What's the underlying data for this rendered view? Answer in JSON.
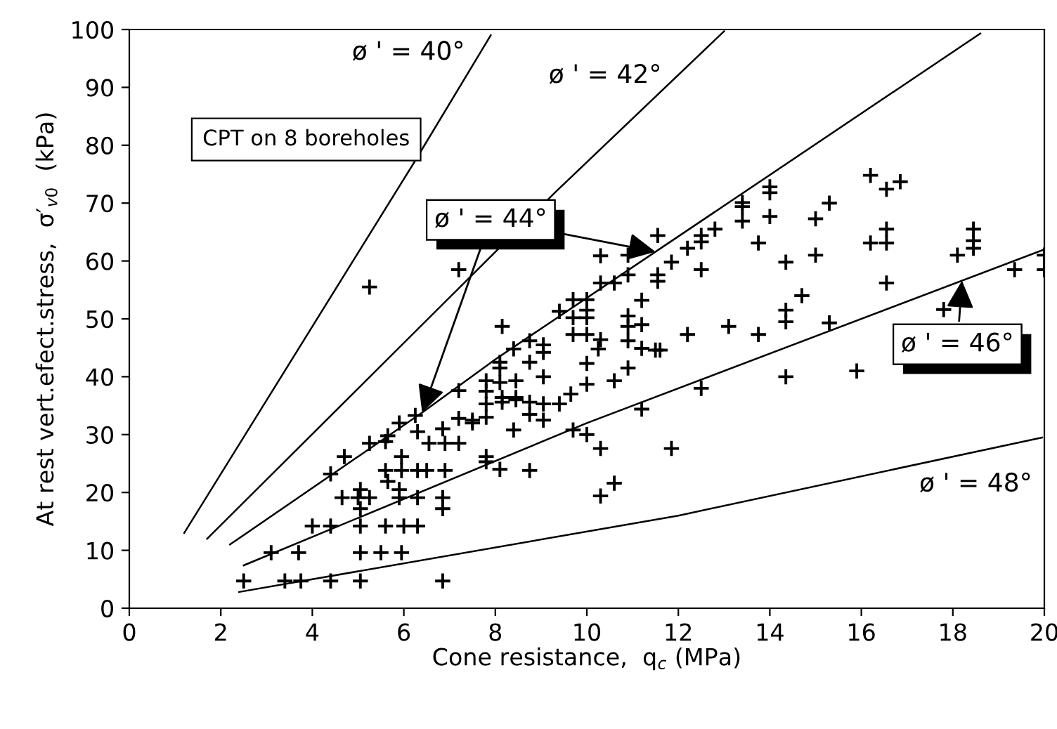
{
  "chart_data": {
    "type": "scatter",
    "xlabel": "Cone resistance,  q$_{c}$ (MPa)",
    "ylabel": "At rest vert.efect.stress,  σ′$_{v0}$  (kPa)",
    "xlim": [
      0,
      20
    ],
    "ylim": [
      0,
      100
    ],
    "xticks": [
      0,
      2,
      4,
      6,
      8,
      10,
      12,
      14,
      16,
      18,
      20
    ],
    "yticks": [
      0,
      10,
      20,
      30,
      40,
      50,
      60,
      70,
      80,
      90,
      100
    ],
    "grid": false,
    "legend": false,
    "marker": "cross",
    "series": [
      {
        "color": "#000000",
        "x": [
          2.5,
          3.4,
          3.75,
          4.4,
          5.05,
          6.85,
          3.1,
          3.7,
          5.05,
          5.5,
          5.95,
          4.0,
          4.4,
          5.05,
          5.6,
          6.0,
          6.3,
          5.05,
          6.85,
          4.65,
          5.0,
          5.25,
          5.9,
          6.3,
          6.85,
          5.05,
          5.9,
          5.65,
          5.6,
          5.95,
          6.3,
          6.5,
          6.9,
          8.1,
          8.75,
          4.4,
          4.7,
          5.95,
          7.8,
          7.8,
          11.85,
          10.3,
          5.25,
          5.6,
          6.55,
          6.9,
          7.2,
          5.65,
          8.4,
          9.7,
          10.0,
          5.9,
          6.3,
          6.85,
          7.2,
          7.5,
          7.8,
          7.5,
          8.75,
          9.05,
          6.25,
          11.2,
          9.4,
          9.05,
          8.75,
          8.45,
          7.8,
          8.15,
          8.15,
          8.45,
          7.8,
          7.2,
          9.65,
          10.0,
          12.5,
          10.6,
          8.1,
          8.45,
          7.8,
          9.05,
          14.35,
          15.9,
          8.1,
          10.9,
          8.1,
          8.75,
          10.0,
          8.4,
          9.05,
          10.25,
          11.5,
          11.6,
          11.2,
          8.75,
          9.05,
          10.3,
          10.9,
          9.7,
          10.0,
          12.2,
          13.75,
          8.15,
          10.9,
          13.1,
          15.3,
          14.35,
          11.2,
          9.7,
          10.0,
          10.9,
          9.4,
          10.0,
          14.35,
          14.7,
          9.7,
          10.0,
          11.2,
          17.8,
          10.3,
          10.6,
          11.55,
          16.55,
          10.9,
          11.55,
          7.2,
          12.5,
          19.35,
          20.0,
          11.85,
          14.35,
          5.25,
          10.3,
          10.9,
          15.0,
          18.1,
          20.0,
          12.2,
          12.5,
          18.45,
          13.75,
          16.2,
          16.55,
          18.45,
          11.55,
          12.5,
          12.8,
          16.55,
          18.45,
          13.4,
          14.0,
          15.0,
          13.4,
          13.4,
          15.3,
          14.0,
          14.0,
          16.55,
          16.85,
          16.2,
          10.6,
          10.3
        ],
        "values": [
          4.7,
          4.7,
          4.7,
          4.7,
          4.7,
          4.7,
          9.6,
          9.6,
          9.6,
          9.6,
          9.6,
          14.2,
          14.2,
          14.2,
          14.2,
          14.2,
          14.2,
          17.2,
          17.2,
          19.1,
          19.1,
          19.1,
          19.1,
          19.1,
          19.1,
          20.5,
          20.5,
          21.9,
          23.8,
          23.8,
          23.8,
          23.8,
          23.8,
          24.0,
          23.8,
          23.2,
          26.2,
          26.2,
          26.2,
          25.3,
          27.6,
          27.6,
          28.5,
          28.8,
          28.5,
          28.5,
          28.5,
          29.8,
          30.8,
          30.8,
          30.0,
          32.0,
          30.5,
          31.0,
          32.8,
          32.0,
          33.0,
          32.5,
          33.5,
          32.5,
          33.3,
          34.4,
          35.3,
          35.3,
          35.6,
          36.0,
          35.3,
          35.6,
          36.4,
          36.4,
          37.5,
          37.6,
          37.0,
          38.7,
          38.0,
          39.3,
          39.0,
          39.3,
          39.3,
          40.0,
          40.0,
          41.0,
          41.5,
          41.5,
          42.5,
          42.5,
          42.3,
          44.8,
          44.2,
          44.8,
          44.6,
          44.6,
          44.9,
          46.2,
          45.5,
          46.4,
          46.2,
          47.3,
          47.3,
          47.3,
          47.3,
          48.7,
          48.7,
          48.7,
          49.3,
          49.5,
          49.0,
          50.2,
          50.2,
          50.5,
          51.3,
          51.5,
          51.5,
          54.0,
          53.3,
          53.3,
          53.2,
          51.6,
          56.2,
          56.2,
          56.5,
          56.2,
          57.6,
          57.6,
          58.5,
          58.5,
          58.5,
          58.5,
          59.8,
          59.8,
          55.5,
          60.9,
          61.0,
          61.0,
          61.0,
          61.0,
          62.2,
          63.3,
          62.2,
          63.1,
          63.1,
          63.1,
          63.5,
          64.4,
          64.4,
          65.5,
          65.5,
          65.5,
          66.9,
          67.7,
          67.3,
          69.4,
          70.1,
          70.0,
          71.8,
          72.8,
          72.4,
          73.7,
          74.8,
          21.6,
          19.4
        ]
      },
      {
        "type": "line",
        "color": "#000000",
        "marker": "none",
        "x": [
          1.2,
          6.2,
          7.9
        ],
        "values": [
          13,
          76.7,
          99
        ]
      },
      {
        "type": "line",
        "color": "#000000",
        "marker": "none",
        "x": [
          1.7,
          9.3,
          13.0
        ],
        "values": [
          12,
          71.8,
          99.7
        ]
      },
      {
        "type": "line",
        "color": "#000000",
        "marker": "none",
        "x": [
          2.2,
          6.4,
          8.0,
          18.6
        ],
        "values": [
          11,
          33.8,
          43,
          99.3
        ]
      },
      {
        "type": "line",
        "color": "#000000",
        "marker": "none",
        "x": [
          2.5,
          10.0,
          20.0
        ],
        "values": [
          7.4,
          32,
          62
        ]
      },
      {
        "type": "line",
        "color": "#000000",
        "marker": "none",
        "x": [
          2.4,
          12.0,
          19.95
        ],
        "values": [
          2.8,
          16,
          29.5
        ]
      }
    ],
    "annotations": [
      "CPT on 8 boreholes",
      "ø ' = 40°",
      "ø ' = 42°",
      {
        "text": "ø ' = 44°",
        "x": 11.5,
        "y": 61.6
      },
      {
        "text": "ø ' = 46°",
        "x": 18.2,
        "y": 56.6
      },
      "ø ' = 48°"
    ]
  }
}
